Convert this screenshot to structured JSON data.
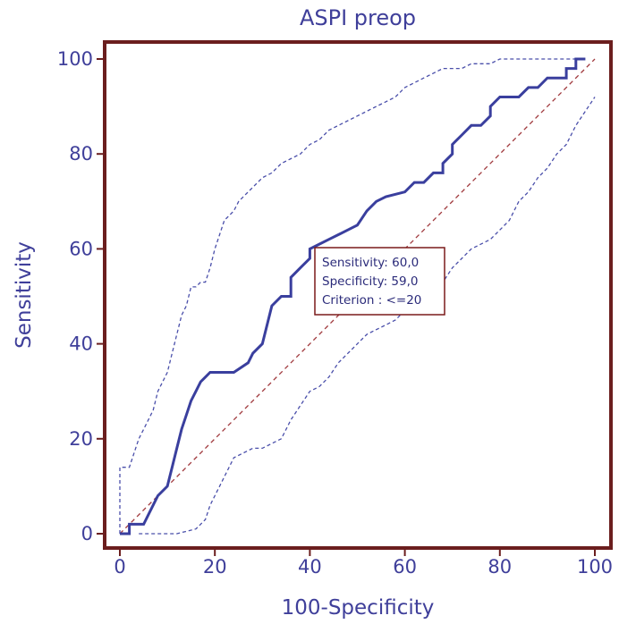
{
  "chart_data": {
    "type": "line",
    "title": "ASPI preop",
    "xlabel": "100-Specificity",
    "ylabel": "Sensitivity",
    "xlim": [
      0,
      100
    ],
    "ylim": [
      0,
      100
    ],
    "xticks": [
      "0",
      "20",
      "40",
      "60",
      "80",
      "100"
    ],
    "yticks": [
      "0",
      "20",
      "40",
      "60",
      "80",
      "100"
    ],
    "grid": false,
    "legend": "none",
    "colors": {
      "roc": "#3a3f9e",
      "ci": "#4a4faa",
      "diagonal": "#a0383c",
      "frame": "#6b1e1e",
      "text": "#3f3f9a",
      "annotation_border": "#7a1a1a"
    },
    "series": [
      {
        "role": "roc",
        "x": [
          0,
          2,
          2,
          5,
          7,
          8,
          10,
          11,
          12,
          13,
          14,
          15,
          16,
          17,
          18,
          19,
          24,
          27,
          28,
          30,
          32,
          34,
          36,
          36,
          38,
          40,
          40,
          42,
          44,
          46,
          48,
          50,
          52,
          54,
          56,
          60,
          62,
          64,
          66,
          68,
          68,
          70,
          70,
          72,
          74,
          76,
          78,
          78,
          80,
          84,
          86,
          88,
          90,
          92,
          94,
          94,
          96,
          96,
          98
        ],
        "y": [
          0,
          0,
          2,
          2,
          6,
          8,
          10,
          14,
          18,
          22,
          25,
          28,
          30,
          32,
          33,
          34,
          34,
          36,
          38,
          40,
          48,
          50,
          50,
          54,
          56,
          58,
          60,
          61,
          62,
          63,
          64,
          65,
          68,
          70,
          71,
          72,
          74,
          74,
          76,
          76,
          78,
          80,
          82,
          84,
          86,
          86,
          88,
          90,
          92,
          92,
          94,
          94,
          96,
          96,
          96,
          98,
          98,
          100,
          100
        ]
      },
      {
        "role": "ci-upper",
        "x": [
          0,
          0,
          2,
          3,
          4,
          5,
          7,
          8,
          10,
          11,
          12,
          13,
          14,
          15,
          16,
          17,
          18,
          19,
          20,
          21,
          22,
          23,
          24,
          25,
          26,
          27,
          28,
          30,
          32,
          34,
          36,
          38,
          40,
          42,
          44,
          46,
          48,
          50,
          52,
          54,
          56,
          58,
          60,
          62,
          64,
          66,
          68,
          70,
          72,
          74,
          76,
          78,
          80,
          82,
          84,
          86,
          88,
          90,
          92,
          94,
          96,
          98
        ],
        "y": [
          0,
          14,
          14,
          17,
          20,
          22,
          26,
          30,
          34,
          38,
          42,
          46,
          48,
          52,
          52,
          53,
          53,
          56,
          60,
          63,
          66,
          67,
          68,
          70,
          71,
          72,
          73,
          75,
          76,
          78,
          79,
          80,
          82,
          83,
          85,
          86,
          87,
          88,
          89,
          90,
          91,
          92,
          94,
          95,
          96,
          97,
          98,
          98,
          98,
          99,
          99,
          99,
          100,
          100,
          100,
          100,
          100,
          100,
          100,
          100,
          100,
          100
        ]
      },
      {
        "role": "ci-lower",
        "x": [
          4,
          8,
          12,
          16,
          17,
          18,
          19,
          20,
          21,
          22,
          23,
          24,
          26,
          28,
          30,
          32,
          34,
          36,
          38,
          40,
          42,
          44,
          46,
          48,
          50,
          52,
          54,
          56,
          58,
          60,
          62,
          64,
          66,
          68,
          70,
          72,
          74,
          76,
          78,
          80,
          82,
          84,
          86,
          88,
          90,
          92,
          94,
          96,
          98,
          100
        ],
        "y": [
          0,
          0,
          0,
          1,
          2,
          3,
          6,
          8,
          10,
          12,
          14,
          16,
          17,
          18,
          18,
          19,
          20,
          24,
          27,
          30,
          31,
          33,
          36,
          38,
          40,
          42,
          43,
          44,
          45,
          47,
          48,
          51,
          52,
          53,
          56,
          58,
          60,
          61,
          62,
          64,
          66,
          70,
          72,
          75,
          77,
          80,
          82,
          86,
          89,
          92
        ]
      },
      {
        "role": "reference-diagonal",
        "x": [
          0,
          100
        ],
        "y": [
          0,
          100
        ]
      }
    ],
    "annotations": {
      "sensitivity": "Sensitivity: 60,0",
      "specificity": "Specificity: 59,0",
      "criterion": "Criterion : <=20"
    }
  }
}
